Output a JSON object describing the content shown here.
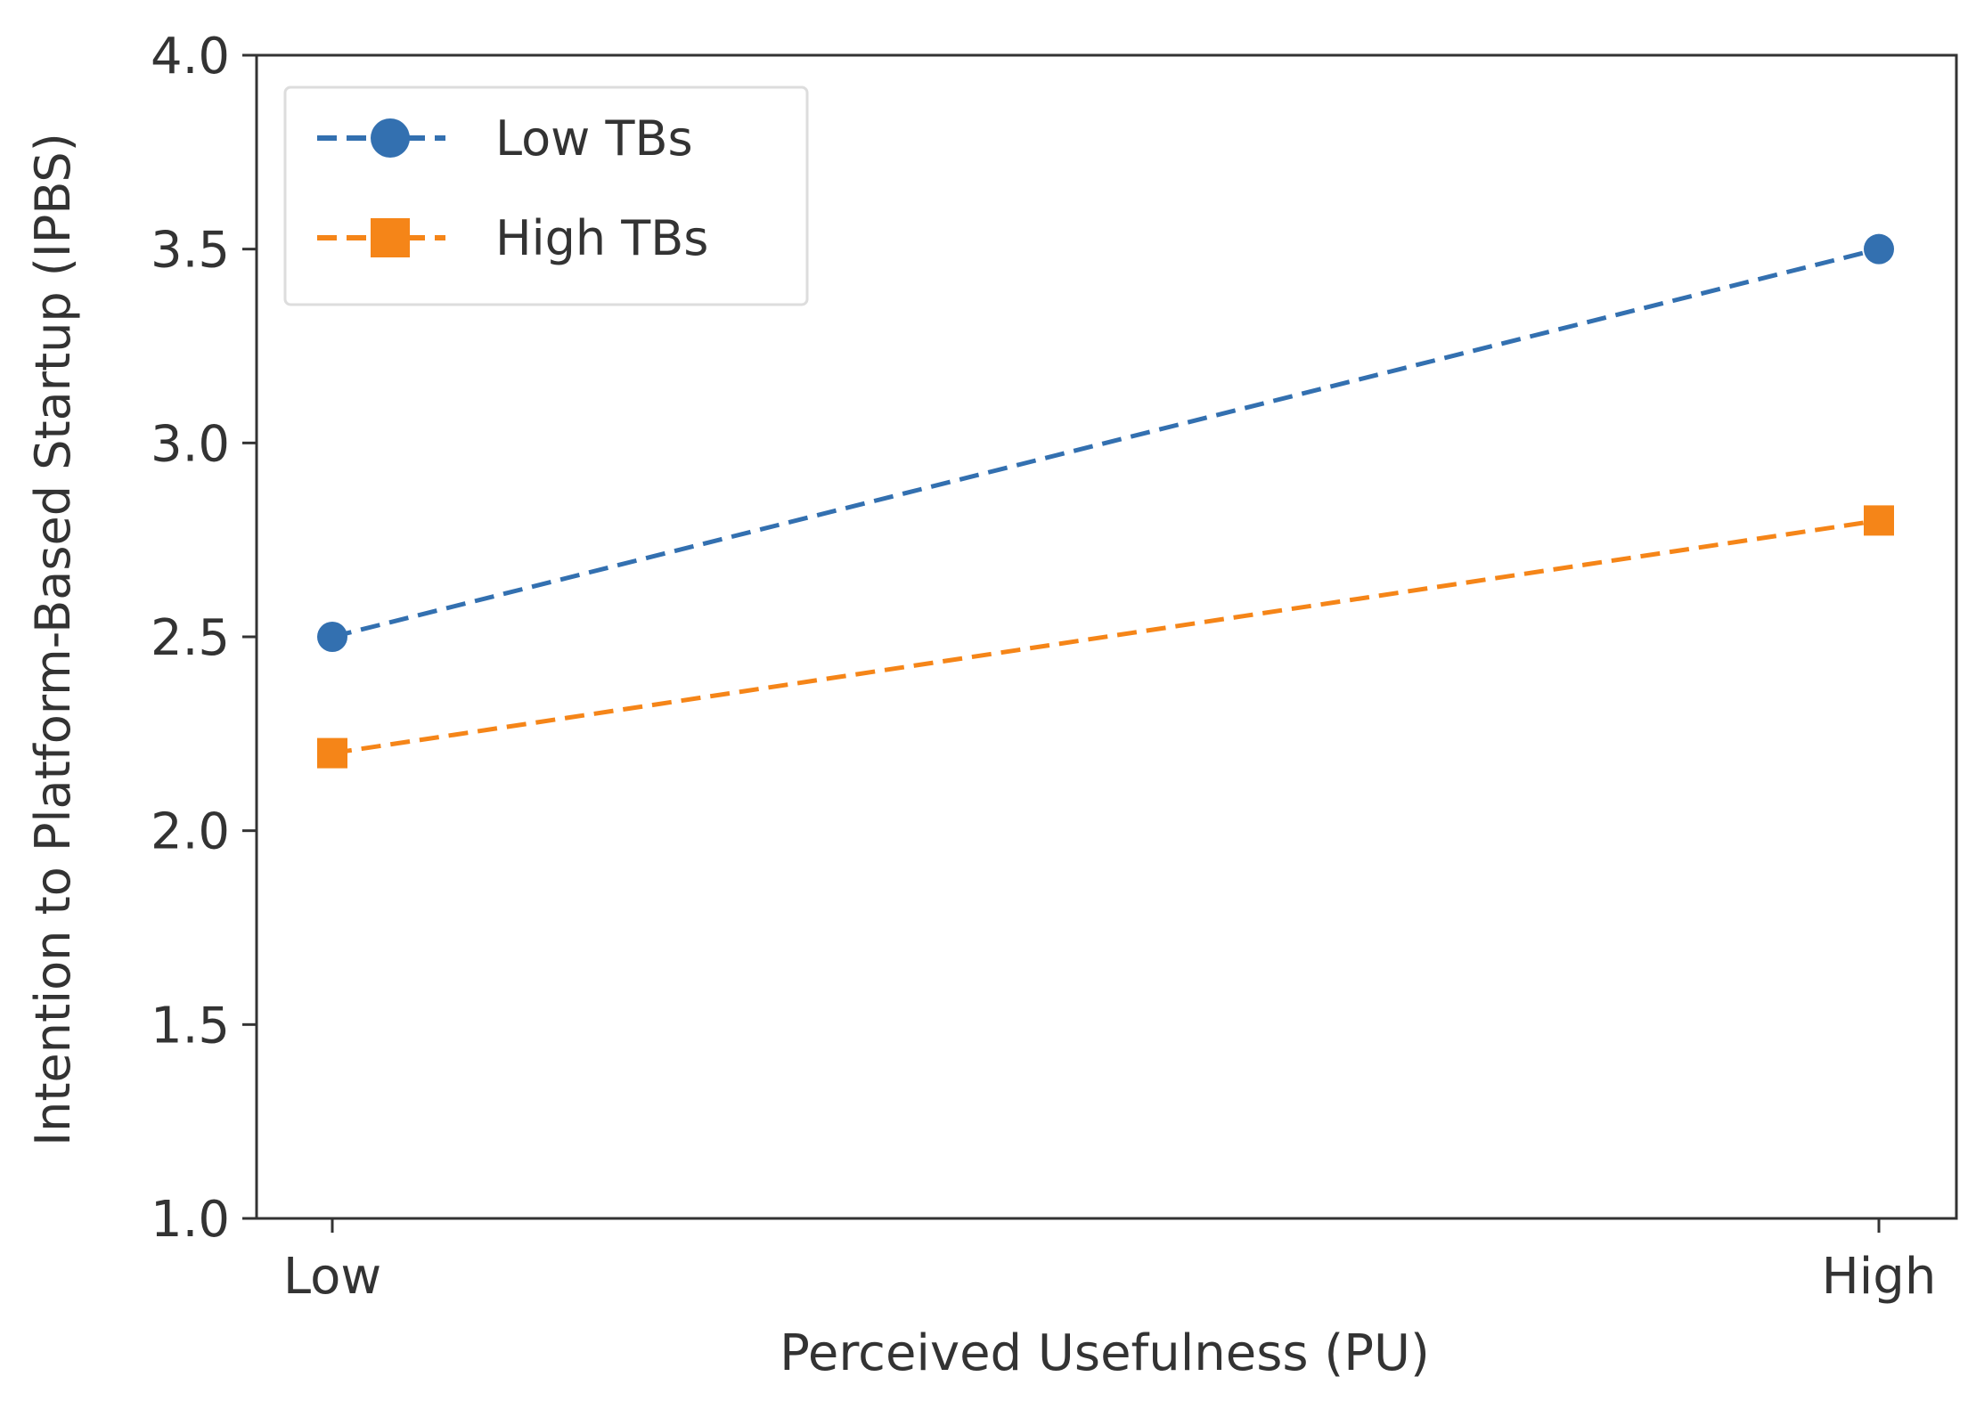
{
  "chart_data": {
    "type": "line",
    "categories": [
      "Low",
      "High"
    ],
    "series": [
      {
        "name": "Low TBs",
        "values": [
          2.5,
          3.5
        ],
        "color": "#3370b0",
        "marker": "circle",
        "line_style": "dashed"
      },
      {
        "name": "High TBs",
        "values": [
          2.2,
          2.8
        ],
        "color": "#f58518",
        "marker": "square",
        "line_style": "dashed"
      }
    ],
    "xlabel": "Perceived Usefulness (PU)",
    "ylabel": "Intention to Platform-Based Startup (IPBS)",
    "ylim": [
      1.0,
      4.0
    ],
    "yticks": [
      "1.0",
      "1.5",
      "2.0",
      "2.5",
      "3.0",
      "3.5",
      "4.0"
    ],
    "grid": false,
    "legend_position": "top-left"
  }
}
